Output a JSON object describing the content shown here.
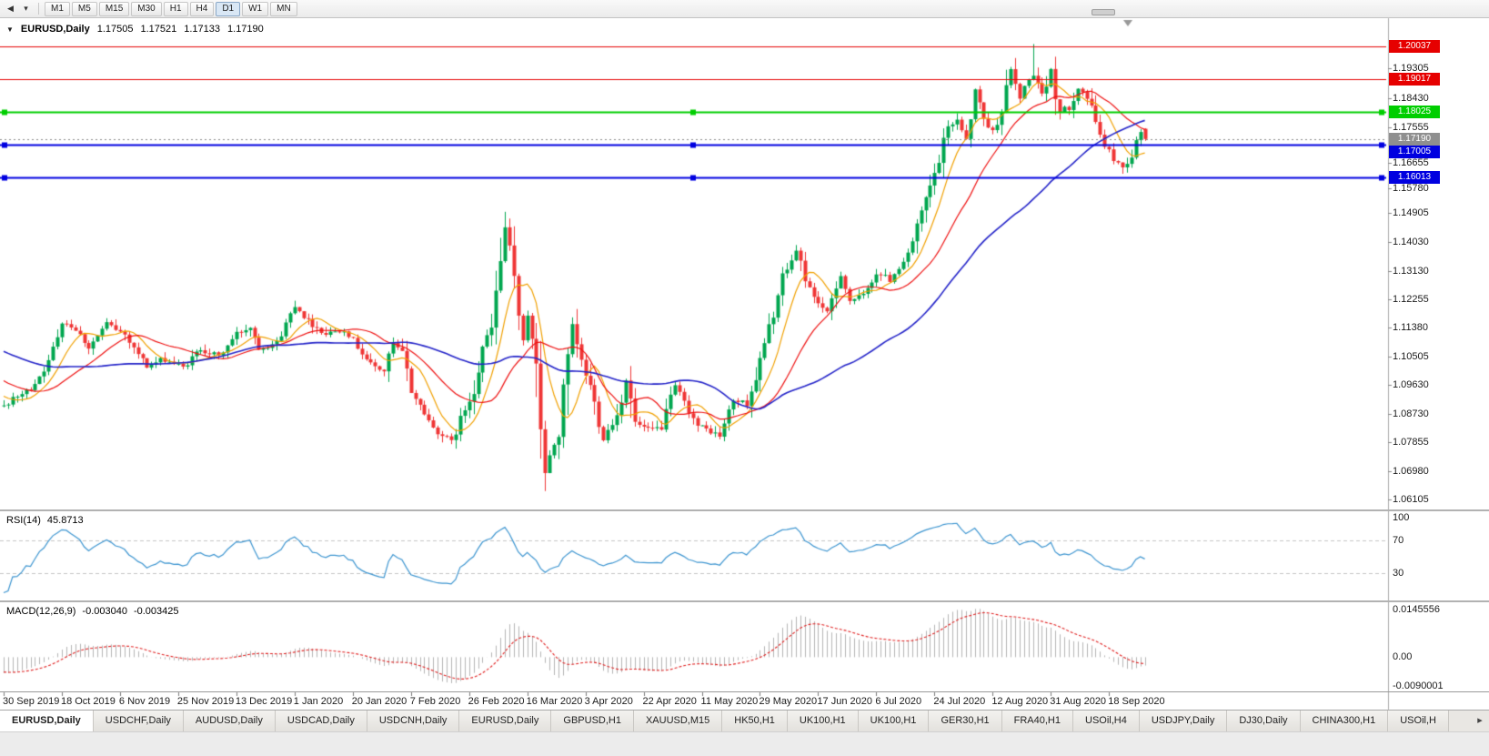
{
  "toolbar": {
    "scroll_start_icon": "◀",
    "dropdown_icon": "▾",
    "timeframes": [
      "M1",
      "M5",
      "M15",
      "M30",
      "H1",
      "H4",
      "D1",
      "W1",
      "MN"
    ],
    "active_timeframe": "D1"
  },
  "main_chart": {
    "header": {
      "collapse_icon": "▼",
      "symbol": "EURUSD,Daily",
      "open": "1.17505",
      "high": "1.17521",
      "low": "1.17133",
      "close": "1.17190"
    },
    "price_axis": {
      "ticks": [
        "1.19305",
        "1.18430",
        "1.17555",
        "1.16655",
        "1.15780",
        "1.14905",
        "1.14030",
        "1.13130",
        "1.12255",
        "1.11380",
        "1.10505",
        "1.09630",
        "1.08730",
        "1.07855",
        "1.06980",
        "1.06105"
      ]
    },
    "hlines": [
      {
        "label": "1.20037",
        "color": "#e60000",
        "width": 1
      },
      {
        "label": "1.19017",
        "color": "#e60000",
        "width": 1
      },
      {
        "label": "1.18025",
        "color": "#00ce00",
        "width": 2
      },
      {
        "label": "1.17005",
        "color": "#0000e0",
        "width": 2
      },
      {
        "label": "1.16013",
        "color": "#0000e0",
        "width": 2
      }
    ],
    "current_price": {
      "label": "1.17190",
      "box_color": "#8f8f8f"
    }
  },
  "rsi_panel": {
    "name": "RSI(14)",
    "value": "45.8713",
    "ticks": [
      "100",
      "70",
      "30"
    ],
    "levels": [
      70,
      30
    ],
    "line_color": "#3d95d0"
  },
  "macd_panel": {
    "name": "MACD(12,26,9)",
    "macd_value": "-0.003040",
    "signal_value": "-0.003425",
    "ticks": [
      "0.0145556",
      "0.00",
      "-0.0090001"
    ],
    "histogram_color": "#b4b4b4",
    "signal_color": "#e02020"
  },
  "time_axis": [
    "30 Sep 2019",
    "18 Oct 2019",
    "6 Nov 2019",
    "25 Nov 2019",
    "13 Dec 2019",
    "1 Jan 2020",
    "20 Jan 2020",
    "7 Feb 2020",
    "26 Feb 2020",
    "16 Mar 2020",
    "3 Apr 2020",
    "22 Apr 2020",
    "11 May 2020",
    "29 May 2020",
    "17 Jun 2020",
    "6 Jul 2020",
    "24 Jul 2020",
    "12 Aug 2020",
    "31 Aug 2020",
    "18 Sep 2020"
  ],
  "tabs": {
    "items": [
      "EURUSD,Daily",
      "USDCHF,Daily",
      "AUDUSD,Daily",
      "USDCAD,Daily",
      "USDCNH,Daily",
      "EURUSD,Daily",
      "GBPUSD,H1",
      "XAUUSD,M15",
      "HK50,H1",
      "UK100,H1",
      "UK100,H1",
      "GER30,H1",
      "FRA40,H1",
      "USOil,H4",
      "USDJPY,Daily",
      "DJ30,Daily",
      "CHINA300,H1",
      "USOil,H"
    ],
    "active_index": 0,
    "scroll_right_icon": "▸"
  },
  "chart_data": {
    "type": "candlestick",
    "symbol": "EURUSD",
    "period": "Daily",
    "visible_bars": 256,
    "pre_bars": 60,
    "y_range": [
      1.0585,
      1.2085
    ],
    "last_bar": {
      "open": 1.17505,
      "high": 1.17521,
      "low": 1.17133,
      "close": 1.1719
    },
    "pre_path": [
      [
        -60,
        1.1275
      ],
      [
        -45,
        1.1195
      ],
      [
        -30,
        1.1085
      ],
      [
        -20,
        1.106
      ],
      [
        -12,
        1.099
      ],
      [
        -6,
        1.0945
      ]
    ],
    "price_path": [
      [
        0,
        1.09
      ],
      [
        3,
        1.0925
      ],
      [
        6,
        1.0952
      ],
      [
        10,
        1.103
      ],
      [
        13,
        1.116
      ],
      [
        16,
        1.1135
      ],
      [
        19,
        1.1078
      ],
      [
        23,
        1.115
      ],
      [
        27,
        1.1118
      ],
      [
        32,
        1.102
      ],
      [
        36,
        1.1042
      ],
      [
        40,
        1.1015
      ],
      [
        44,
        1.1075
      ],
      [
        48,
        1.1048
      ],
      [
        52,
        1.112
      ],
      [
        55,
        1.1142
      ],
      [
        57,
        1.1078
      ],
      [
        61,
        1.1092
      ],
      [
        65,
        1.121
      ],
      [
        68,
        1.1158
      ],
      [
        72,
        1.112
      ],
      [
        76,
        1.1136
      ],
      [
        82,
        1.1025
      ],
      [
        85,
        1.1005
      ],
      [
        87,
        1.109
      ],
      [
        89,
        1.1058
      ],
      [
        91,
        1.0945
      ],
      [
        96,
        1.083
      ],
      [
        100,
        1.0786
      ],
      [
        102,
        1.0856
      ],
      [
        105,
        1.0952
      ],
      [
        107,
        1.108
      ],
      [
        109,
        1.1135
      ],
      [
        112,
        1.1447
      ],
      [
        115,
        1.1184
      ],
      [
        116,
        1.1105
      ],
      [
        117,
        1.118
      ],
      [
        119,
        1.099
      ],
      [
        121,
        1.0695
      ],
      [
        124,
        1.082
      ],
      [
        127,
        1.114
      ],
      [
        129,
        1.103
      ],
      [
        131,
        1.0958
      ],
      [
        134,
        1.08
      ],
      [
        137,
        1.087
      ],
      [
        139,
        1.098
      ],
      [
        141,
        1.0845
      ],
      [
        144,
        1.0822
      ],
      [
        147,
        1.0832
      ],
      [
        150,
        1.0958
      ],
      [
        152,
        1.0908
      ],
      [
        155,
        1.0836
      ],
      [
        158,
        1.082
      ],
      [
        160,
        1.0805
      ],
      [
        163,
        1.0915
      ],
      [
        166,
        1.0905
      ],
      [
        168,
        1.0985
      ],
      [
        171,
        1.1135
      ],
      [
        174,
        1.129
      ],
      [
        177,
        1.1375
      ],
      [
        180,
        1.1255
      ],
      [
        184,
        1.118
      ],
      [
        187,
        1.1305
      ],
      [
        189,
        1.1222
      ],
      [
        192,
        1.1236
      ],
      [
        195,
        1.1308
      ],
      [
        198,
        1.1286
      ],
      [
        201,
        1.1345
      ],
      [
        203,
        1.14
      ],
      [
        206,
        1.153
      ],
      [
        209,
        1.165
      ],
      [
        211,
        1.1755
      ],
      [
        213,
        1.178
      ],
      [
        215,
        1.1722
      ],
      [
        217,
        1.1868
      ],
      [
        219,
        1.1782
      ],
      [
        221,
        1.174
      ],
      [
        223,
        1.1812
      ],
      [
        225,
        1.193
      ],
      [
        227,
        1.1842
      ],
      [
        229,
        1.1908
      ],
      [
        230,
        1.1911
      ],
      [
        232,
        1.185
      ],
      [
        234,
        1.1928
      ],
      [
        236,
        1.1802
      ],
      [
        238,
        1.1816
      ],
      [
        240,
        1.188
      ],
      [
        242,
        1.1846
      ],
      [
        244,
        1.1772
      ],
      [
        246,
        1.17
      ],
      [
        248,
        1.1658
      ],
      [
        250,
        1.1631
      ],
      [
        252,
        1.1668
      ],
      [
        254,
        1.1742
      ],
      [
        255,
        1.1719
      ]
    ],
    "key_extremes": [
      {
        "i": 112,
        "high": 1.1495
      },
      {
        "i": 121,
        "low": 1.0636
      },
      {
        "i": 230,
        "high": 1.2011
      },
      {
        "i": 250,
        "low": 1.1612
      }
    ],
    "moving_averages": [
      {
        "period": 8,
        "color": "#f0a000"
      },
      {
        "period": 20,
        "color": "#ee1111"
      },
      {
        "period": 50,
        "color": "#2323c8"
      }
    ],
    "levels": [
      1.20037,
      1.19017,
      1.18025,
      1.17005,
      1.16013
    ],
    "rsi": {
      "period": 14,
      "value": 45.8713,
      "overbought": 70,
      "oversold": 30,
      "range": [
        0,
        100
      ]
    },
    "macd": {
      "fast": 12,
      "slow": 26,
      "signal_period": 9,
      "value": -0.00304,
      "signal_value": -0.003425,
      "scale_max": 0.0145556,
      "scale_min": -0.0090001
    },
    "candle_up_color": "#00a64f",
    "candle_down_color": "#ef3535"
  }
}
